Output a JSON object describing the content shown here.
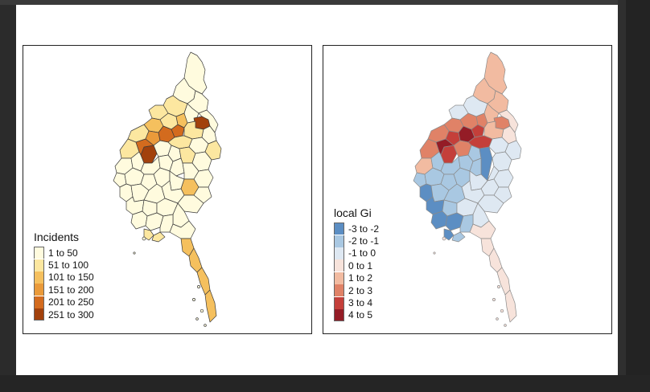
{
  "left_map": {
    "legend_title": "Incidents",
    "legend": [
      {
        "label": "1 to 50",
        "color": "#FFFBDE"
      },
      {
        "label": "51 to 100",
        "color": "#FCE7A0"
      },
      {
        "label": "101 to 150",
        "color": "#F5C05E"
      },
      {
        "label": "151 to 200",
        "color": "#EA9A3A"
      },
      {
        "label": "201 to 250",
        "color": "#D36B1E"
      },
      {
        "label": "251 to 300",
        "color": "#A2410C"
      }
    ]
  },
  "right_map": {
    "legend_title": "local Gi",
    "legend": [
      {
        "label": "-3 to -2",
        "color": "#5C8EC3"
      },
      {
        "label": "-2 to -1",
        "color": "#A9C8E2"
      },
      {
        "label": "-1 to 0",
        "color": "#DEE8F2"
      },
      {
        "label": "0 to 1",
        "color": "#F7E3DB"
      },
      {
        "label": "1 to 2",
        "color": "#F2BBA1"
      },
      {
        "label": "2 to 3",
        "color": "#E08267"
      },
      {
        "label": "3 to 4",
        "color": "#C43F3A"
      },
      {
        "label": "4 to 5",
        "color": "#941C26"
      }
    ]
  }
}
